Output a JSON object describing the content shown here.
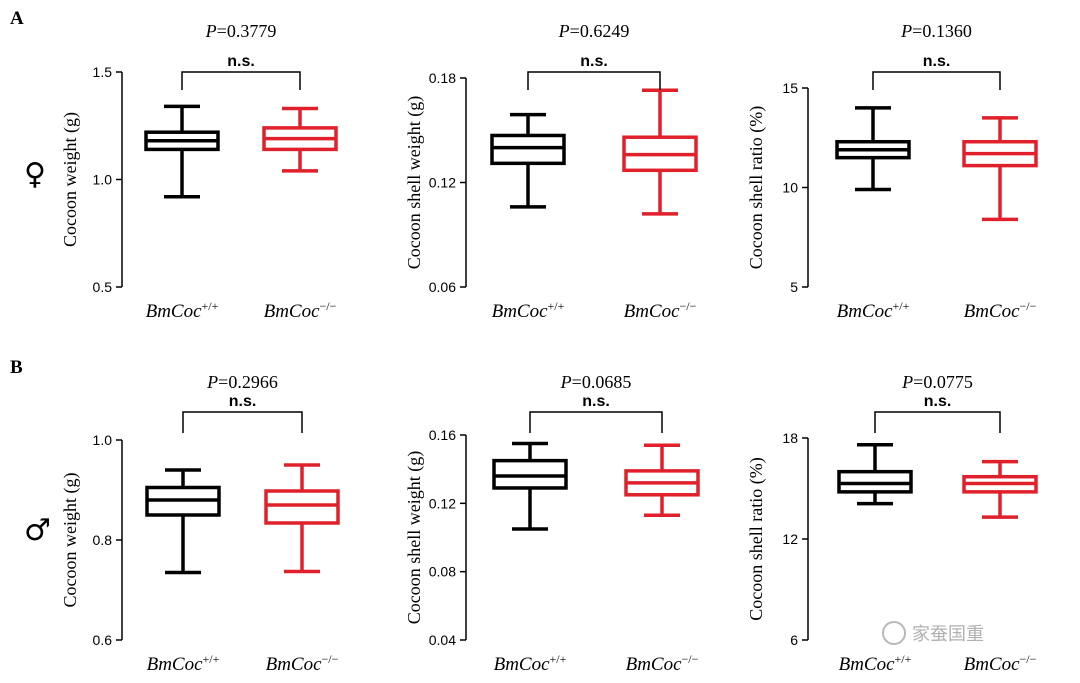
{
  "panels": [
    {
      "letter": "A",
      "sex_symbol": "♀"
    },
    {
      "letter": "B",
      "sex_symbol": "♂"
    }
  ],
  "watermark": {
    "text": "家蚕国重",
    "icon": "wechat-icon"
  },
  "colors": {
    "wild_type": "#000000",
    "knockout": "#e0202a",
    "axis": "#000000"
  },
  "chart_data": [
    {
      "type": "box",
      "panel": "A",
      "ylabel": "Cocoon weight (g)",
      "ylim": [
        0.5,
        1.5
      ],
      "yticks": [
        "0.5",
        "1.0",
        "1.5"
      ],
      "ytick_values": [
        0.5,
        1.0,
        1.5
      ],
      "pvalue": "P=0.3779",
      "significance": "n.s.",
      "categories": [
        {
          "main": "BmCoc",
          "sup": "+/+"
        },
        {
          "main": "BmCoc",
          "sup": "−/−"
        }
      ],
      "boxes": [
        {
          "min": 0.92,
          "q1": 1.14,
          "median": 1.18,
          "q3": 1.22,
          "max": 1.34
        },
        {
          "min": 1.04,
          "q1": 1.14,
          "median": 1.19,
          "q3": 1.24,
          "max": 1.33
        }
      ]
    },
    {
      "type": "box",
      "panel": "A",
      "ylabel": "Cocoon shell weight (g)",
      "ylim": [
        0.06,
        0.18
      ],
      "yticks": [
        "0.06",
        "0.12",
        "0.18"
      ],
      "ytick_values": [
        0.06,
        0.12,
        0.18
      ],
      "pvalue": "P=0.6249",
      "significance": "n.s.",
      "categories": [
        {
          "main": "BmCoc",
          "sup": "+/+"
        },
        {
          "main": "BmCoc",
          "sup": "−/−"
        }
      ],
      "boxes": [
        {
          "min": 0.106,
          "q1": 0.131,
          "median": 0.14,
          "q3": 0.147,
          "max": 0.159
        },
        {
          "min": 0.102,
          "q1": 0.127,
          "median": 0.136,
          "q3": 0.146,
          "max": 0.173
        }
      ]
    },
    {
      "type": "box",
      "panel": "A",
      "ylabel": "Cocoon shell ratio (%)",
      "ylim": [
        5,
        15
      ],
      "yticks": [
        "5",
        "10",
        "15"
      ],
      "ytick_values": [
        5,
        10,
        15
      ],
      "pvalue": "P=0.1360",
      "significance": "n.s.",
      "categories": [
        {
          "main": "BmCoc",
          "sup": "+/+"
        },
        {
          "main": "BmCoc",
          "sup": "−/−"
        }
      ],
      "boxes": [
        {
          "min": 9.9,
          "q1": 11.5,
          "median": 11.9,
          "q3": 12.3,
          "max": 14.0
        },
        {
          "min": 8.4,
          "q1": 11.1,
          "median": 11.7,
          "q3": 12.3,
          "max": 13.5
        }
      ]
    },
    {
      "type": "box",
      "panel": "B",
      "ylabel": "Cocoon weight (g)",
      "ylim": [
        0.6,
        1.0
      ],
      "yticks": [
        "0.6",
        "0.8",
        "1.0"
      ],
      "ytick_values": [
        0.6,
        0.8,
        1.0
      ],
      "pvalue": "P=0.2966",
      "significance": "n.s.",
      "categories": [
        {
          "main": "BmCoc",
          "sup": "+/+"
        },
        {
          "main": "BmCoc",
          "sup": "−/−"
        }
      ],
      "boxes": [
        {
          "min": 0.735,
          "q1": 0.85,
          "median": 0.88,
          "q3": 0.905,
          "max": 0.94
        },
        {
          "min": 0.737,
          "q1": 0.834,
          "median": 0.87,
          "q3": 0.898,
          "max": 0.95
        }
      ]
    },
    {
      "type": "box",
      "panel": "B",
      "ylabel": "Cocoon shell weight (g)",
      "ylim": [
        0.04,
        0.16
      ],
      "yticks": [
        "0.04",
        "0.08",
        "0.12",
        "0.16"
      ],
      "ytick_values": [
        0.04,
        0.08,
        0.12,
        0.16
      ],
      "pvalue": "P=0.0685",
      "significance": "n.s.",
      "categories": [
        {
          "main": "BmCoc",
          "sup": "+/+"
        },
        {
          "main": "BmCoc",
          "sup": "−/−"
        }
      ],
      "boxes": [
        {
          "min": 0.105,
          "q1": 0.129,
          "median": 0.136,
          "q3": 0.145,
          "max": 0.155
        },
        {
          "min": 0.113,
          "q1": 0.125,
          "median": 0.132,
          "q3": 0.139,
          "max": 0.154
        }
      ]
    },
    {
      "type": "box",
      "panel": "B",
      "ylabel": "Cocoon shell ratio (%)",
      "ylim": [
        6,
        18
      ],
      "yticks": [
        "6",
        "12",
        "18"
      ],
      "ytick_values": [
        6,
        12,
        18
      ],
      "pvalue": "P=0.0775",
      "significance": "n.s.",
      "categories": [
        {
          "main": "BmCoc",
          "sup": "+/+"
        },
        {
          "main": "BmCoc",
          "sup": "−/−"
        }
      ],
      "boxes": [
        {
          "min": 14.1,
          "q1": 14.8,
          "median": 15.3,
          "q3": 16.0,
          "max": 17.6
        },
        {
          "min": 13.3,
          "q1": 14.8,
          "median": 15.3,
          "q3": 15.7,
          "max": 16.6
        }
      ]
    }
  ]
}
